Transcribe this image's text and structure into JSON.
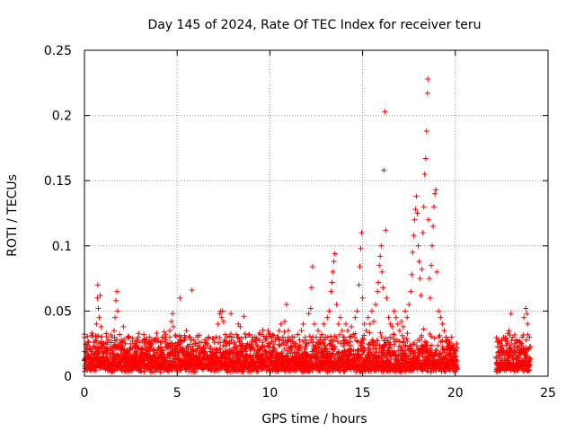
{
  "chart_data": {
    "type": "scatter",
    "title": "Day 145 of 2024, Rate Of TEC Index for receiver teru",
    "xlabel": "GPS time / hours",
    "ylabel": "ROTI / TECUs",
    "xlim": [
      0,
      25
    ],
    "ylim": [
      0,
      0.25
    ],
    "x_ticks": [
      "0",
      "5",
      "10",
      "15",
      "20",
      "25"
    ],
    "y_ticks": [
      "0",
      "0.05",
      "0.1",
      "0.15",
      "0.2",
      "0.25"
    ],
    "grid": true,
    "marker": "+",
    "color": "#ff0000",
    "data_gap": [
      20.1,
      22.2
    ],
    "points": [
      [
        0.0,
        0.012
      ],
      [
        0.1,
        0.018
      ],
      [
        0.2,
        0.015
      ],
      [
        0.3,
        0.022
      ],
      [
        0.4,
        0.019
      ],
      [
        0.5,
        0.026
      ],
      [
        0.6,
        0.031
      ],
      [
        0.65,
        0.04
      ],
      [
        0.7,
        0.06
      ],
      [
        0.72,
        0.07
      ],
      [
        0.75,
        0.052
      ],
      [
        0.8,
        0.045
      ],
      [
        0.85,
        0.062
      ],
      [
        0.9,
        0.038
      ],
      [
        1.0,
        0.025
      ],
      [
        1.1,
        0.021
      ],
      [
        1.2,
        0.018
      ],
      [
        1.3,
        0.028
      ],
      [
        1.4,
        0.022
      ],
      [
        1.5,
        0.03
      ],
      [
        1.6,
        0.035
      ],
      [
        1.65,
        0.045
      ],
      [
        1.7,
        0.058
      ],
      [
        1.75,
        0.065
      ],
      [
        1.8,
        0.05
      ],
      [
        1.9,
        0.032
      ],
      [
        2.0,
        0.028
      ],
      [
        2.1,
        0.038
      ],
      [
        2.2,
        0.025
      ],
      [
        2.3,
        0.02
      ],
      [
        2.4,
        0.03
      ],
      [
        2.5,
        0.022
      ],
      [
        2.6,
        0.027
      ],
      [
        2.7,
        0.018
      ],
      [
        2.8,
        0.024
      ],
      [
        2.9,
        0.03
      ],
      [
        3.0,
        0.026
      ],
      [
        3.1,
        0.02
      ],
      [
        3.2,
        0.032
      ],
      [
        3.3,
        0.028
      ],
      [
        3.4,
        0.022
      ],
      [
        3.5,
        0.03
      ],
      [
        3.6,
        0.025
      ],
      [
        3.7,
        0.02
      ],
      [
        3.8,
        0.028
      ],
      [
        3.9,
        0.033
      ],
      [
        4.0,
        0.022
      ],
      [
        4.1,
        0.026
      ],
      [
        4.2,
        0.03
      ],
      [
        4.3,
        0.034
      ],
      [
        4.4,
        0.028
      ],
      [
        4.5,
        0.024
      ],
      [
        4.6,
        0.035
      ],
      [
        4.7,
        0.042
      ],
      [
        4.75,
        0.048
      ],
      [
        4.8,
        0.038
      ],
      [
        4.9,
        0.025
      ],
      [
        5.0,
        0.02
      ],
      [
        5.1,
        0.025
      ],
      [
        5.15,
        0.06
      ],
      [
        5.2,
        0.03
      ],
      [
        5.3,
        0.02
      ],
      [
        5.4,
        0.028
      ],
      [
        5.5,
        0.035
      ],
      [
        5.6,
        0.022
      ],
      [
        5.7,
        0.03
      ],
      [
        5.8,
        0.066
      ],
      [
        5.9,
        0.028
      ],
      [
        6.0,
        0.025
      ],
      [
        6.1,
        0.03
      ],
      [
        6.2,
        0.022
      ],
      [
        6.3,
        0.026
      ],
      [
        6.4,
        0.02
      ],
      [
        6.5,
        0.028
      ],
      [
        6.6,
        0.024
      ],
      [
        6.7,
        0.03
      ],
      [
        6.8,
        0.022
      ],
      [
        6.9,
        0.018
      ],
      [
        7.0,
        0.026
      ],
      [
        7.1,
        0.03
      ],
      [
        7.2,
        0.04
      ],
      [
        7.3,
        0.048
      ],
      [
        7.35,
        0.05
      ],
      [
        7.4,
        0.045
      ],
      [
        7.45,
        0.05
      ],
      [
        7.5,
        0.042
      ],
      [
        7.6,
        0.032
      ],
      [
        7.7,
        0.03
      ],
      [
        7.8,
        0.025
      ],
      [
        7.9,
        0.048
      ],
      [
        8.0,
        0.03
      ],
      [
        8.1,
        0.026
      ],
      [
        8.2,
        0.032
      ],
      [
        8.3,
        0.04
      ],
      [
        8.4,
        0.038
      ],
      [
        8.5,
        0.025
      ],
      [
        8.6,
        0.046
      ],
      [
        8.7,
        0.03
      ],
      [
        8.8,
        0.025
      ],
      [
        8.9,
        0.032
      ],
      [
        9.0,
        0.022
      ],
      [
        9.1,
        0.028
      ],
      [
        9.2,
        0.03
      ],
      [
        9.3,
        0.024
      ],
      [
        9.4,
        0.02
      ],
      [
        9.5,
        0.032
      ],
      [
        9.6,
        0.026
      ],
      [
        9.7,
        0.02
      ],
      [
        9.8,
        0.03
      ],
      [
        9.9,
        0.035
      ],
      [
        10.0,
        0.025
      ],
      [
        10.1,
        0.03
      ],
      [
        10.2,
        0.022
      ],
      [
        10.3,
        0.028
      ],
      [
        10.4,
        0.03
      ],
      [
        10.5,
        0.035
      ],
      [
        10.6,
        0.04
      ],
      [
        10.7,
        0.03
      ],
      [
        10.8,
        0.042
      ],
      [
        10.9,
        0.055
      ],
      [
        11.0,
        0.035
      ],
      [
        11.1,
        0.028
      ],
      [
        11.2,
        0.022
      ],
      [
        11.3,
        0.03
      ],
      [
        11.4,
        0.025
      ],
      [
        11.5,
        0.032
      ],
      [
        11.6,
        0.028
      ],
      [
        11.7,
        0.035
      ],
      [
        11.8,
        0.04
      ],
      [
        11.9,
        0.03
      ],
      [
        12.0,
        0.025
      ],
      [
        12.1,
        0.048
      ],
      [
        12.2,
        0.052
      ],
      [
        12.25,
        0.068
      ],
      [
        12.3,
        0.084
      ],
      [
        12.4,
        0.04
      ],
      [
        12.5,
        0.03
      ],
      [
        12.6,
        0.035
      ],
      [
        12.7,
        0.028
      ],
      [
        12.8,
        0.032
      ],
      [
        12.9,
        0.04
      ],
      [
        13.0,
        0.03
      ],
      [
        13.1,
        0.045
      ],
      [
        13.2,
        0.05
      ],
      [
        13.3,
        0.065
      ],
      [
        13.35,
        0.072
      ],
      [
        13.4,
        0.08
      ],
      [
        13.45,
        0.088
      ],
      [
        13.5,
        0.094
      ],
      [
        13.6,
        0.055
      ],
      [
        13.7,
        0.04
      ],
      [
        13.8,
        0.045
      ],
      [
        13.9,
        0.035
      ],
      [
        14.0,
        0.03
      ],
      [
        14.1,
        0.04
      ],
      [
        14.2,
        0.035
      ],
      [
        14.3,
        0.03
      ],
      [
        14.4,
        0.038
      ],
      [
        14.5,
        0.032
      ],
      [
        14.6,
        0.045
      ],
      [
        14.7,
        0.05
      ],
      [
        14.8,
        0.07
      ],
      [
        14.85,
        0.084
      ],
      [
        14.9,
        0.098
      ],
      [
        14.95,
        0.11
      ],
      [
        15.0,
        0.06
      ],
      [
        15.1,
        0.04
      ],
      [
        15.2,
        0.035
      ],
      [
        15.3,
        0.045
      ],
      [
        15.4,
        0.04
      ],
      [
        15.5,
        0.05
      ],
      [
        15.6,
        0.042
      ],
      [
        15.7,
        0.055
      ],
      [
        15.8,
        0.065
      ],
      [
        15.85,
        0.072
      ],
      [
        15.9,
        0.085
      ],
      [
        15.95,
        0.092
      ],
      [
        16.0,
        0.1
      ],
      [
        16.05,
        0.08
      ],
      [
        16.1,
        0.068
      ],
      [
        16.15,
        0.158
      ],
      [
        16.2,
        0.203
      ],
      [
        16.25,
        0.112
      ],
      [
        16.3,
        0.06
      ],
      [
        16.4,
        0.045
      ],
      [
        16.5,
        0.04
      ],
      [
        16.6,
        0.038
      ],
      [
        16.7,
        0.05
      ],
      [
        16.8,
        0.045
      ],
      [
        16.9,
        0.04
      ],
      [
        17.0,
        0.035
      ],
      [
        17.1,
        0.042
      ],
      [
        17.2,
        0.038
      ],
      [
        17.3,
        0.05
      ],
      [
        17.4,
        0.045
      ],
      [
        17.5,
        0.055
      ],
      [
        17.6,
        0.065
      ],
      [
        17.65,
        0.078
      ],
      [
        17.7,
        0.095
      ],
      [
        17.75,
        0.108
      ],
      [
        17.8,
        0.12
      ],
      [
        17.85,
        0.128
      ],
      [
        17.9,
        0.138
      ],
      [
        17.95,
        0.125
      ],
      [
        18.0,
        0.1
      ],
      [
        18.05,
        0.088
      ],
      [
        18.1,
        0.075
      ],
      [
        18.15,
        0.062
      ],
      [
        18.2,
        0.082
      ],
      [
        18.25,
        0.11
      ],
      [
        18.3,
        0.13
      ],
      [
        18.35,
        0.155
      ],
      [
        18.4,
        0.167
      ],
      [
        18.45,
        0.188
      ],
      [
        18.5,
        0.217
      ],
      [
        18.52,
        0.228
      ],
      [
        18.55,
        0.12
      ],
      [
        18.6,
        0.075
      ],
      [
        18.65,
        0.06
      ],
      [
        18.7,
        0.085
      ],
      [
        18.75,
        0.1
      ],
      [
        18.8,
        0.115
      ],
      [
        18.85,
        0.13
      ],
      [
        18.9,
        0.14
      ],
      [
        18.95,
        0.143
      ],
      [
        19.0,
        0.08
      ],
      [
        19.1,
        0.05
      ],
      [
        19.2,
        0.045
      ],
      [
        19.3,
        0.04
      ],
      [
        19.4,
        0.035
      ],
      [
        19.5,
        0.03
      ],
      [
        19.6,
        0.028
      ],
      [
        19.7,
        0.025
      ],
      [
        19.8,
        0.03
      ],
      [
        19.9,
        0.022
      ],
      [
        20.0,
        0.02
      ],
      [
        20.05,
        0.015
      ],
      [
        22.3,
        0.018
      ],
      [
        22.4,
        0.025
      ],
      [
        22.5,
        0.022
      ],
      [
        22.6,
        0.02
      ],
      [
        22.7,
        0.028
      ],
      [
        22.8,
        0.025
      ],
      [
        22.9,
        0.035
      ],
      [
        23.0,
        0.048
      ],
      [
        23.1,
        0.03
      ],
      [
        23.2,
        0.025
      ],
      [
        23.3,
        0.028
      ],
      [
        23.4,
        0.022
      ],
      [
        23.5,
        0.026
      ],
      [
        23.6,
        0.03
      ],
      [
        23.7,
        0.045
      ],
      [
        23.8,
        0.052
      ],
      [
        23.85,
        0.048
      ],
      [
        23.9,
        0.04
      ],
      [
        24.0,
        0.03
      ]
    ]
  }
}
